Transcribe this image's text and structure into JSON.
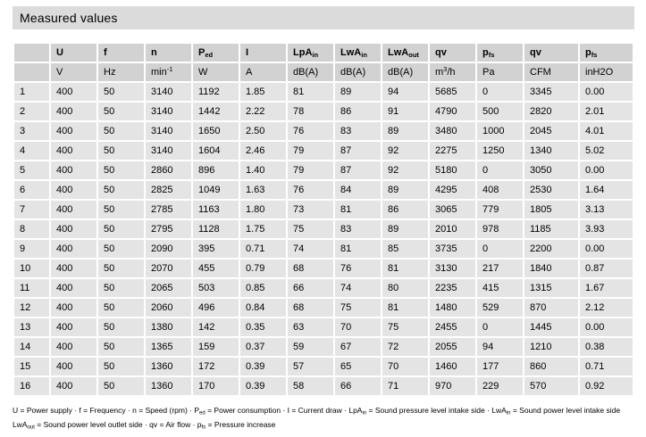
{
  "title": "Measured values",
  "colors": {
    "title_band_bg": "#dbdbdb",
    "header_cell_bg": "#d2d2d2",
    "data_cell_bg": "#e4e4e4",
    "text": "#000000",
    "page_bg": "#ffffff"
  },
  "table": {
    "columns": [
      {
        "header": {
          "text": ""
        },
        "unit": {
          "text": ""
        }
      },
      {
        "header": {
          "text": "U"
        },
        "unit": {
          "text": "V"
        }
      },
      {
        "header": {
          "text": "f"
        },
        "unit": {
          "text": "Hz"
        }
      },
      {
        "header": {
          "text": "n"
        },
        "unit": {
          "text": "min",
          "sup": "-1"
        }
      },
      {
        "header": {
          "text": "P",
          "sub": "ed"
        },
        "unit": {
          "text": "W"
        }
      },
      {
        "header": {
          "text": "I"
        },
        "unit": {
          "text": "A"
        }
      },
      {
        "header": {
          "text": "LpA",
          "sub": "in"
        },
        "unit": {
          "text": "dB(A)"
        }
      },
      {
        "header": {
          "text": "LwA",
          "sub": "in"
        },
        "unit": {
          "text": "dB(A)"
        }
      },
      {
        "header": {
          "text": "LwA",
          "sub": "out"
        },
        "unit": {
          "text": "dB(A)"
        }
      },
      {
        "header": {
          "text": "qv"
        },
        "unit": {
          "text": "m",
          "sup": "3",
          "after": "/h"
        }
      },
      {
        "header": {
          "text": "p",
          "sub": "fs"
        },
        "unit": {
          "text": "Pa"
        }
      },
      {
        "header": {
          "text": "qv"
        },
        "unit": {
          "text": "CFM"
        }
      },
      {
        "header": {
          "text": "p",
          "sub": "fs"
        },
        "unit": {
          "text": "inH2O"
        }
      }
    ],
    "rows": [
      [
        "1",
        "400",
        "50",
        "3140",
        "1192",
        "1.85",
        "81",
        "89",
        "94",
        "5685",
        "0",
        "3345",
        "0.00"
      ],
      [
        "2",
        "400",
        "50",
        "3140",
        "1442",
        "2.22",
        "78",
        "86",
        "91",
        "4790",
        "500",
        "2820",
        "2.01"
      ],
      [
        "3",
        "400",
        "50",
        "3140",
        "1650",
        "2.50",
        "76",
        "83",
        "89",
        "3480",
        "1000",
        "2045",
        "4.01"
      ],
      [
        "4",
        "400",
        "50",
        "3140",
        "1604",
        "2.46",
        "79",
        "87",
        "92",
        "2275",
        "1250",
        "1340",
        "5.02"
      ],
      [
        "5",
        "400",
        "50",
        "2860",
        "896",
        "1.40",
        "79",
        "87",
        "92",
        "5180",
        "0",
        "3050",
        "0.00"
      ],
      [
        "6",
        "400",
        "50",
        "2825",
        "1049",
        "1.63",
        "76",
        "84",
        "89",
        "4295",
        "408",
        "2530",
        "1.64"
      ],
      [
        "7",
        "400",
        "50",
        "2785",
        "1163",
        "1.80",
        "73",
        "81",
        "86",
        "3065",
        "779",
        "1805",
        "3.13"
      ],
      [
        "8",
        "400",
        "50",
        "2795",
        "1128",
        "1.75",
        "75",
        "83",
        "89",
        "2010",
        "978",
        "1185",
        "3.93"
      ],
      [
        "9",
        "400",
        "50",
        "2090",
        "395",
        "0.71",
        "74",
        "81",
        "85",
        "3735",
        "0",
        "2200",
        "0.00"
      ],
      [
        "10",
        "400",
        "50",
        "2070",
        "455",
        "0.79",
        "68",
        "76",
        "81",
        "3130",
        "217",
        "1840",
        "0.87"
      ],
      [
        "11",
        "400",
        "50",
        "2065",
        "503",
        "0.85",
        "66",
        "74",
        "80",
        "2235",
        "415",
        "1315",
        "1.67"
      ],
      [
        "12",
        "400",
        "50",
        "2060",
        "496",
        "0.84",
        "68",
        "75",
        "81",
        "1480",
        "529",
        "870",
        "2.12"
      ],
      [
        "13",
        "400",
        "50",
        "1380",
        "142",
        "0.35",
        "63",
        "70",
        "75",
        "2455",
        "0",
        "1445",
        "0.00"
      ],
      [
        "14",
        "400",
        "50",
        "1365",
        "159",
        "0.37",
        "59",
        "67",
        "72",
        "2055",
        "94",
        "1210",
        "0.38"
      ],
      [
        "15",
        "400",
        "50",
        "1360",
        "172",
        "0.39",
        "57",
        "65",
        "70",
        "1460",
        "177",
        "860",
        "0.71"
      ],
      [
        "16",
        "400",
        "50",
        "1360",
        "170",
        "0.39",
        "58",
        "66",
        "71",
        "970",
        "229",
        "570",
        "0.92"
      ]
    ]
  },
  "footnote": {
    "lines": [
      [
        {
          "t": "U = Power supply · f = Frequency · n = Speed (rpm) · P"
        },
        {
          "t": "ed",
          "sub": true
        },
        {
          "t": " = Power consumption · I = Current draw · LpA"
        },
        {
          "t": "in",
          "sub": true
        },
        {
          "t": " = Sound pressure level intake side · LwA"
        },
        {
          "t": "in",
          "sub": true
        },
        {
          "t": " = Sound power level intake side"
        }
      ],
      [
        {
          "t": "LwA"
        },
        {
          "t": "out",
          "sub": true
        },
        {
          "t": " = Sound power level outlet side · qv = Air flow · p"
        },
        {
          "t": "fs",
          "sub": true
        },
        {
          "t": " = Pressure increase"
        }
      ]
    ]
  }
}
